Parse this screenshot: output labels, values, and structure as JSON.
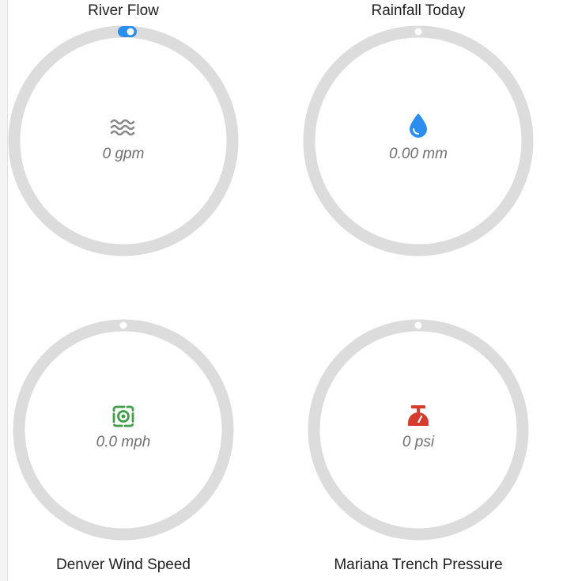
{
  "gauges": [
    {
      "title": "River Flow",
      "value": "0 gpm",
      "icon": "waves-icon",
      "color": "#8a8a8a",
      "level": 0,
      "handle": "toggle",
      "handle_color": "#2a8ef0"
    },
    {
      "title": "Rainfall Today",
      "value": "0.00 mm",
      "icon": "water-drop-icon",
      "color": "#2a8ef0",
      "level": 0,
      "handle": "dot"
    },
    {
      "title": "Denver Wind Speed",
      "value": "0.0 mph",
      "icon": "wind-swirl-icon",
      "color": "#3f9e4a",
      "level": 0,
      "handle": "dot"
    },
    {
      "title": "Mariana Trench Pressure",
      "value": "0 psi",
      "icon": "pressure-gauge-icon",
      "color": "#d83a2c",
      "level": 0,
      "handle": "dot"
    }
  ],
  "ring_color": "#dcdcdc"
}
